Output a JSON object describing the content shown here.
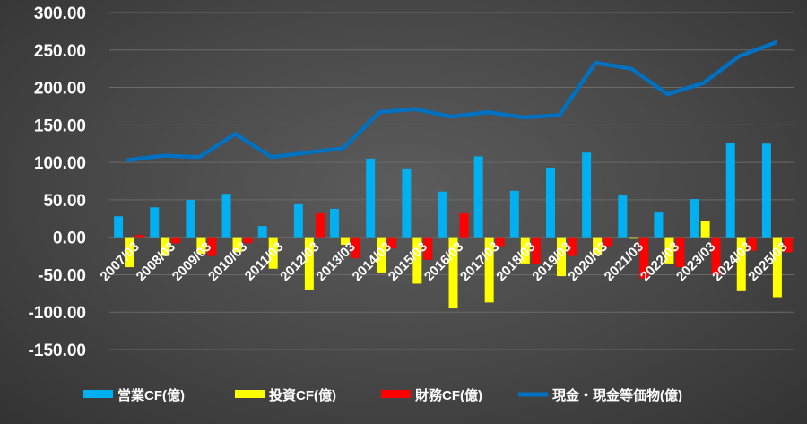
{
  "chart_data": {
    "type": "bar",
    "categories": [
      "2007/03",
      "2008/03",
      "2009/03",
      "2010/03",
      "2011/03",
      "2012/03",
      "2013/03",
      "2014/03",
      "2015/03",
      "2016/03",
      "2017/03",
      "2018/03",
      "2019/03",
      "2020/03",
      "2021/03",
      "2022/03",
      "2023/03",
      "2024/03",
      "2025/03"
    ],
    "series": [
      {
        "name": "営業CF(億)",
        "kind": "bar",
        "color": "#00b0f0",
        "values": [
          28,
          40,
          50,
          58,
          15,
          44,
          38,
          105,
          92,
          61,
          108,
          62,
          93,
          113,
          57,
          33,
          51,
          126,
          125
        ]
      },
      {
        "name": "投資CF(億)",
        "kind": "bar",
        "color": "#ffff00",
        "values": [
          -40,
          -25,
          -22,
          -20,
          -42,
          -70,
          -10,
          -47,
          -62,
          -95,
          -87,
          -35,
          -52,
          -23,
          -2,
          -35,
          22,
          -72,
          -80
        ]
      },
      {
        "name": "財務CF(億)",
        "kind": "bar",
        "color": "#ff0000",
        "values": [
          3,
          -8,
          -25,
          -8,
          0,
          32,
          -28,
          -15,
          -30,
          32,
          -12,
          -35,
          -25,
          -12,
          -55,
          -40,
          -50,
          -18,
          -20
        ]
      },
      {
        "name": "現金・現金等価物(億)",
        "kind": "line",
        "color": "#0070c0",
        "values": [
          103,
          109,
          107,
          138,
          107,
          113,
          119,
          167,
          171,
          161,
          167,
          160,
          163,
          233,
          225,
          191,
          206,
          242,
          260
        ]
      }
    ],
    "ylim": [
      -150,
      300
    ],
    "yticks": [
      "300.00",
      "250.00",
      "200.00",
      "150.00",
      "100.00",
      "50.00",
      "0.00",
      "-50.00",
      "-100.00",
      "-150.00"
    ],
    "grid": true,
    "legend_position": "bottom"
  }
}
